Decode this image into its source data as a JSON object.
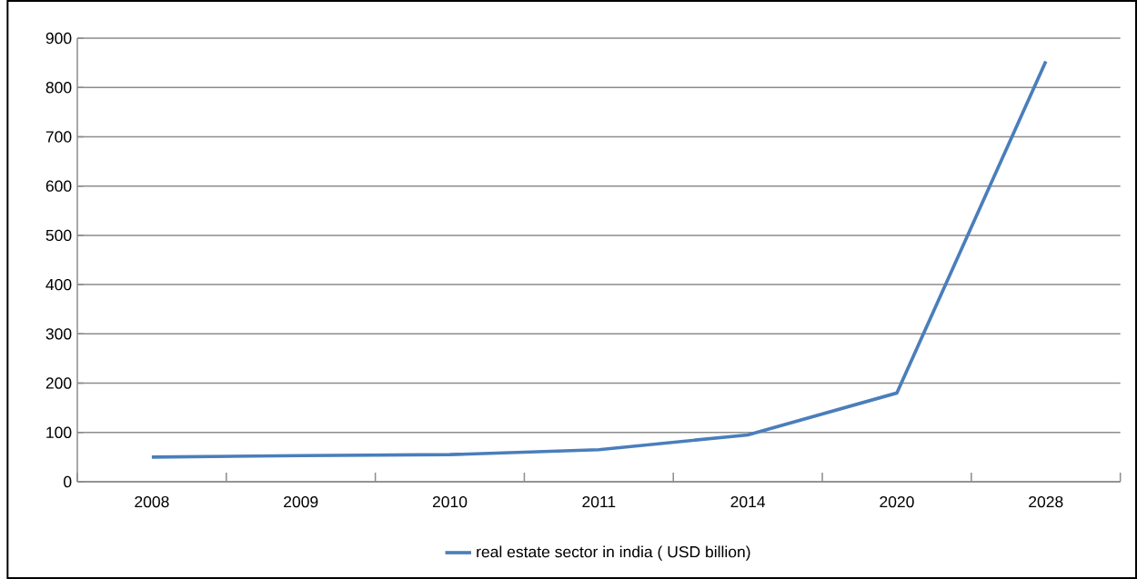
{
  "chart_data": {
    "type": "line",
    "categories": [
      "2008",
      "2009",
      "2010",
      "2011",
      "2014",
      "2020",
      "2028"
    ],
    "series": [
      {
        "name": "real estate sector in india  ( USD billion)",
        "color": "#4a7ebb",
        "values": [
          50,
          53,
          55,
          65,
          95,
          180,
          853
        ]
      }
    ],
    "ylim": [
      0,
      900
    ],
    "yticks": [
      0,
      100,
      200,
      300,
      400,
      500,
      600,
      700,
      800,
      900
    ],
    "grid": "y",
    "legend": "bottom",
    "marker": "none",
    "line_style": "solid"
  }
}
